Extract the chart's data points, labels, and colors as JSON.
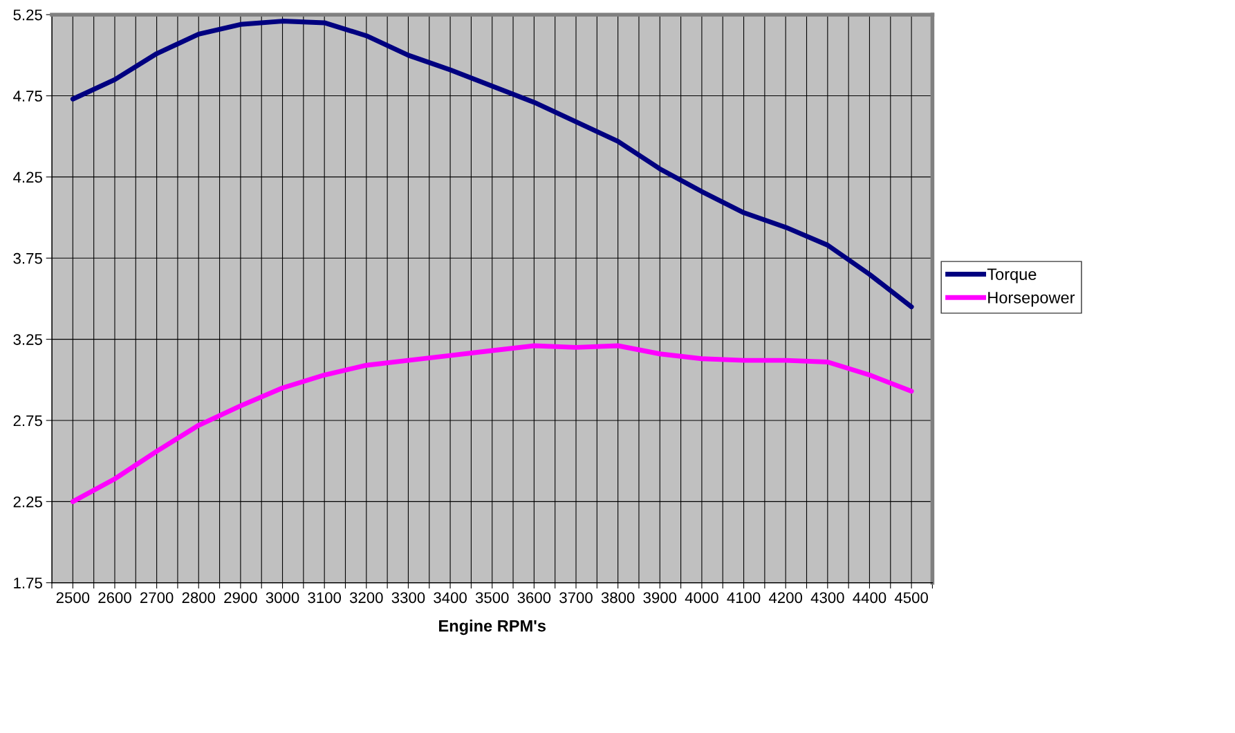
{
  "chart_data": {
    "type": "line",
    "xlabel": "Engine RPM's",
    "x": [
      2500,
      2600,
      2700,
      2800,
      2900,
      3000,
      3100,
      3200,
      3300,
      3400,
      3500,
      3600,
      3700,
      3800,
      3900,
      4000,
      4100,
      4200,
      4300,
      4400,
      4500
    ],
    "series": [
      {
        "name": "Torque",
        "color": "#000080",
        "values": [
          4.73,
          4.85,
          5.01,
          5.13,
          5.19,
          5.21,
          5.2,
          5.12,
          5.0,
          4.91,
          4.81,
          4.71,
          4.59,
          4.47,
          4.3,
          4.16,
          4.03,
          3.94,
          3.83,
          3.65,
          3.45
        ]
      },
      {
        "name": "Horsepower",
        "color": "#ff00ff",
        "values": [
          2.25,
          2.39,
          2.56,
          2.72,
          2.84,
          2.95,
          3.03,
          3.09,
          3.12,
          3.15,
          3.18,
          3.21,
          3.2,
          3.21,
          3.16,
          3.13,
          3.12,
          3.12,
          3.11,
          3.03,
          2.93
        ]
      }
    ],
    "xlim": [
      2450,
      4550
    ],
    "xticks": [
      {
        "value": 2450,
        "label": null
      },
      2500,
      {
        "value": 2550,
        "label": null
      },
      2600,
      {
        "value": 2650,
        "label": null
      },
      2700,
      {
        "value": 2750,
        "label": null
      },
      2800,
      {
        "value": 2850,
        "label": null
      },
      2900,
      {
        "value": 2950,
        "label": null
      },
      3000,
      {
        "value": 3050,
        "label": null
      },
      3100,
      {
        "value": 3150,
        "label": null
      },
      3200,
      {
        "value": 3250,
        "label": null
      },
      3300,
      {
        "value": 3350,
        "label": null
      },
      3400,
      {
        "value": 3450,
        "label": null
      },
      3500,
      {
        "value": 3550,
        "label": null
      },
      3600,
      {
        "value": 3650,
        "label": null
      },
      3700,
      {
        "value": 3750,
        "label": null
      },
      3800,
      {
        "value": 3850,
        "label": null
      },
      3900,
      {
        "value": 3950,
        "label": null
      },
      4000,
      {
        "value": 4050,
        "label": null
      },
      4100,
      {
        "value": 4150,
        "label": null
      },
      4200,
      {
        "value": 4250,
        "label": null
      },
      4300,
      {
        "value": 4350,
        "label": null
      },
      4400,
      {
        "value": 4450,
        "label": null
      },
      4500,
      {
        "value": 4550,
        "label": null
      }
    ],
    "ylim": [
      1.75,
      5.25
    ],
    "yticks": [
      1.75,
      2.25,
      2.75,
      3.25,
      3.75,
      4.25,
      4.75,
      5.25
    ],
    "grid": true,
    "legend": "right",
    "marker": "none",
    "line_style": "solid"
  }
}
